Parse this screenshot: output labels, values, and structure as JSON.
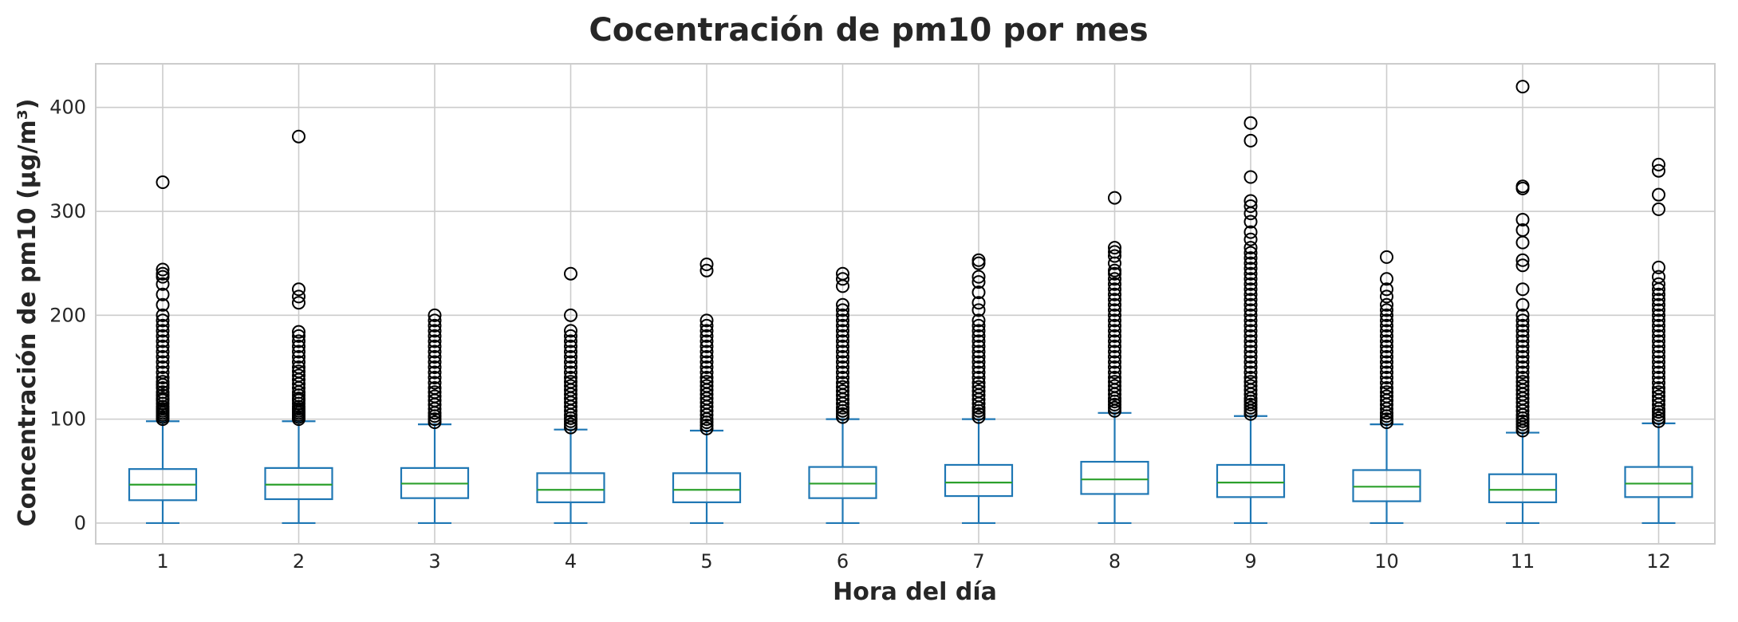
{
  "chart_data": {
    "type": "box",
    "title": "Cocentración de pm10 por mes",
    "xlabel": "Hora del día",
    "ylabel": "Concentración de pm10 (µg/m³)",
    "ylim": [
      -20,
      442
    ],
    "yticks": [
      0,
      100,
      200,
      300,
      400
    ],
    "grid": true,
    "categories": [
      "1",
      "2",
      "3",
      "4",
      "5",
      "6",
      "7",
      "8",
      "9",
      "10",
      "11",
      "12"
    ],
    "colors": {
      "box": "#1f77b4",
      "median": "#2ca02c",
      "flier": "#000000",
      "grid": "#cccccc"
    },
    "boxes": [
      {
        "category": "1",
        "whisker_low": 0,
        "q1": 22,
        "median": 37,
        "q3": 52,
        "whisker_high": 98,
        "outliers": [
          100,
          102,
          104,
          106,
          108,
          110,
          112,
          115,
          118,
          120,
          123,
          126,
          130,
          133,
          136,
          140,
          145,
          150,
          155,
          160,
          165,
          170,
          175,
          180,
          185,
          190,
          195,
          200,
          210,
          220,
          230,
          237,
          240,
          244,
          328
        ]
      },
      {
        "category": "2",
        "whisker_low": 0,
        "q1": 23,
        "median": 37,
        "q3": 53,
        "whisker_high": 98,
        "outliers": [
          100,
          102,
          104,
          106,
          108,
          110,
          112,
          115,
          118,
          120,
          123,
          126,
          130,
          134,
          138,
          142,
          146,
          150,
          155,
          160,
          165,
          170,
          175,
          180,
          184,
          212,
          218,
          225,
          372
        ]
      },
      {
        "category": "3",
        "whisker_low": 0,
        "q1": 24,
        "median": 38,
        "q3": 53,
        "whisker_high": 95,
        "outliers": [
          97,
          100,
          103,
          106,
          110,
          114,
          118,
          122,
          126,
          130,
          135,
          140,
          145,
          150,
          155,
          160,
          165,
          170,
          175,
          180,
          185,
          190,
          195,
          200
        ]
      },
      {
        "category": "4",
        "whisker_low": 0,
        "q1": 20,
        "median": 32,
        "q3": 48,
        "whisker_high": 90,
        "outliers": [
          92,
          95,
          98,
          101,
          104,
          108,
          112,
          116,
          120,
          124,
          128,
          132,
          136,
          140,
          145,
          150,
          155,
          160,
          165,
          170,
          175,
          180,
          185,
          200,
          240
        ]
      },
      {
        "category": "5",
        "whisker_low": 0,
        "q1": 20,
        "median": 32,
        "q3": 48,
        "whisker_high": 89,
        "outliers": [
          91,
          94,
          97,
          100,
          104,
          108,
          112,
          116,
          120,
          124,
          128,
          132,
          136,
          140,
          145,
          150,
          155,
          160,
          165,
          170,
          175,
          180,
          185,
          190,
          195,
          243,
          249
        ]
      },
      {
        "category": "6",
        "whisker_low": 0,
        "q1": 24,
        "median": 38,
        "q3": 54,
        "whisker_high": 100,
        "outliers": [
          102,
          105,
          108,
          111,
          115,
          119,
          123,
          127,
          131,
          135,
          140,
          145,
          150,
          155,
          160,
          165,
          170,
          175,
          180,
          185,
          190,
          195,
          200,
          205,
          210,
          228,
          235,
          240
        ]
      },
      {
        "category": "7",
        "whisker_low": 0,
        "q1": 26,
        "median": 39,
        "q3": 56,
        "whisker_high": 100,
        "outliers": [
          102,
          105,
          108,
          111,
          115,
          119,
          123,
          127,
          131,
          135,
          140,
          145,
          150,
          155,
          160,
          165,
          170,
          175,
          180,
          185,
          190,
          195,
          205,
          212,
          222,
          232,
          237,
          250,
          253
        ]
      },
      {
        "category": "8",
        "whisker_low": 0,
        "q1": 28,
        "median": 42,
        "q3": 59,
        "whisker_high": 106,
        "outliers": [
          108,
          111,
          114,
          117,
          120,
          124,
          128,
          132,
          136,
          140,
          145,
          150,
          155,
          160,
          165,
          170,
          175,
          180,
          185,
          190,
          195,
          200,
          205,
          210,
          215,
          220,
          225,
          230,
          235,
          240,
          243,
          250,
          257,
          261,
          265,
          313
        ]
      },
      {
        "category": "9",
        "whisker_low": 0,
        "q1": 25,
        "median": 39,
        "q3": 56,
        "whisker_high": 103,
        "outliers": [
          105,
          108,
          111,
          114,
          117,
          120,
          124,
          128,
          132,
          136,
          140,
          145,
          150,
          155,
          160,
          165,
          170,
          175,
          180,
          185,
          190,
          195,
          200,
          205,
          210,
          215,
          220,
          225,
          230,
          235,
          240,
          245,
          250,
          255,
          260,
          265,
          273,
          280,
          290,
          298,
          305,
          310,
          333,
          368,
          385
        ]
      },
      {
        "category": "10",
        "whisker_low": 0,
        "q1": 21,
        "median": 35,
        "q3": 51,
        "whisker_high": 95,
        "outliers": [
          97,
          100,
          103,
          106,
          110,
          114,
          118,
          122,
          126,
          130,
          135,
          140,
          145,
          150,
          155,
          160,
          165,
          170,
          175,
          180,
          185,
          190,
          195,
          200,
          205,
          210,
          218,
          225,
          235,
          256
        ]
      },
      {
        "category": "11",
        "whisker_low": 0,
        "q1": 20,
        "median": 32,
        "q3": 47,
        "whisker_high": 87,
        "outliers": [
          89,
          92,
          95,
          98,
          101,
          104,
          108,
          112,
          116,
          120,
          124,
          128,
          132,
          136,
          140,
          145,
          150,
          155,
          160,
          165,
          170,
          175,
          180,
          185,
          190,
          195,
          200,
          210,
          225,
          248,
          253,
          270,
          282,
          292,
          322,
          324,
          420
        ]
      },
      {
        "category": "12",
        "whisker_low": 0,
        "q1": 25,
        "median": 38,
        "q3": 54,
        "whisker_high": 96,
        "outliers": [
          98,
          101,
          104,
          107,
          110,
          114,
          118,
          122,
          126,
          130,
          135,
          140,
          145,
          150,
          155,
          160,
          165,
          170,
          175,
          180,
          185,
          190,
          195,
          200,
          205,
          210,
          215,
          220,
          225,
          230,
          237,
          246,
          302,
          316,
          339,
          345
        ]
      }
    ]
  }
}
